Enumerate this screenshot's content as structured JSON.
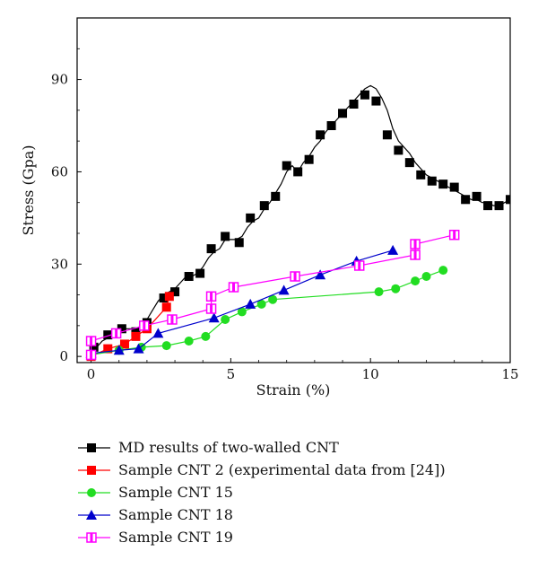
{
  "chart_data": {
    "type": "line",
    "xlabel": "Strain (%)",
    "ylabel": "Stress (Gpa)",
    "xlim": [
      -0.5,
      15
    ],
    "ylim": [
      -2,
      110
    ],
    "x_ticks": [
      0,
      5,
      10,
      15
    ],
    "y_ticks": [
      0,
      30,
      60,
      90
    ],
    "x_tick_labels": [
      "0",
      "5",
      "10",
      "15"
    ],
    "y_tick_labels": [
      "0",
      "30",
      "60",
      "90"
    ],
    "grid": false,
    "legend_position": "below",
    "series": [
      {
        "name": "MD results of two-walled CNT",
        "color": "#000000",
        "marker": "square",
        "marker_fill": "#000000",
        "line_style": "solid",
        "md_curve": [
          [
            0,
            1
          ],
          [
            0.2,
            3
          ],
          [
            0.4,
            5
          ],
          [
            0.6,
            6
          ],
          [
            0.8,
            7
          ],
          [
            1.0,
            8
          ],
          [
            1.2,
            9
          ],
          [
            1.4,
            9
          ],
          [
            1.6,
            9
          ],
          [
            1.8,
            10
          ],
          [
            2.0,
            12
          ],
          [
            2.2,
            15
          ],
          [
            2.4,
            18
          ],
          [
            2.6,
            20
          ],
          [
            2.8,
            21
          ],
          [
            3.0,
            22
          ],
          [
            3.2,
            24
          ],
          [
            3.4,
            26
          ],
          [
            3.6,
            26
          ],
          [
            3.8,
            27
          ],
          [
            4.0,
            29
          ],
          [
            4.2,
            32
          ],
          [
            4.4,
            34
          ],
          [
            4.6,
            35
          ],
          [
            4.8,
            38
          ],
          [
            5.0,
            38
          ],
          [
            5.2,
            38
          ],
          [
            5.4,
            39
          ],
          [
            5.6,
            42
          ],
          [
            5.8,
            44
          ],
          [
            6.0,
            45
          ],
          [
            6.2,
            48
          ],
          [
            6.4,
            50
          ],
          [
            6.6,
            53
          ],
          [
            6.8,
            56
          ],
          [
            7.0,
            60
          ],
          [
            7.2,
            62
          ],
          [
            7.4,
            60
          ],
          [
            7.6,
            63
          ],
          [
            7.8,
            65
          ],
          [
            8.0,
            68
          ],
          [
            8.2,
            70
          ],
          [
            8.4,
            73
          ],
          [
            8.6,
            75
          ],
          [
            8.8,
            77
          ],
          [
            9.0,
            79
          ],
          [
            9.2,
            81
          ],
          [
            9.4,
            83
          ],
          [
            9.6,
            85
          ],
          [
            9.8,
            87
          ],
          [
            10.0,
            88
          ],
          [
            10.2,
            87
          ],
          [
            10.4,
            84
          ],
          [
            10.6,
            80
          ],
          [
            10.8,
            74
          ],
          [
            11.0,
            70
          ],
          [
            11.2,
            68
          ],
          [
            11.4,
            66
          ],
          [
            11.6,
            63
          ],
          [
            11.8,
            61
          ],
          [
            12.0,
            59
          ],
          [
            12.2,
            58
          ],
          [
            12.4,
            57
          ],
          [
            12.6,
            56
          ],
          [
            12.8,
            55
          ],
          [
            13.0,
            54
          ],
          [
            13.2,
            53
          ],
          [
            13.4,
            52
          ],
          [
            13.6,
            51
          ],
          [
            13.8,
            51
          ],
          [
            14.0,
            50
          ],
          [
            14.2,
            50
          ],
          [
            14.4,
            49
          ],
          [
            14.6,
            49
          ],
          [
            14.8,
            50
          ],
          [
            15.0,
            51
          ]
        ],
        "points": [
          [
            0.1,
            3
          ],
          [
            0.6,
            7
          ],
          [
            1.1,
            9
          ],
          [
            1.6,
            8
          ],
          [
            2.0,
            11
          ],
          [
            2.6,
            19
          ],
          [
            3.0,
            21
          ],
          [
            3.5,
            26
          ],
          [
            3.9,
            27
          ],
          [
            4.3,
            35
          ],
          [
            4.8,
            39
          ],
          [
            5.3,
            37
          ],
          [
            5.7,
            45
          ],
          [
            6.2,
            49
          ],
          [
            6.6,
            52
          ],
          [
            7.0,
            62
          ],
          [
            7.4,
            60
          ],
          [
            7.8,
            64
          ],
          [
            8.2,
            72
          ],
          [
            8.6,
            75
          ],
          [
            9.0,
            79
          ],
          [
            9.4,
            82
          ],
          [
            9.8,
            85
          ],
          [
            10.2,
            83
          ],
          [
            10.6,
            72
          ],
          [
            11.0,
            67
          ],
          [
            11.4,
            63
          ],
          [
            11.8,
            59
          ],
          [
            12.2,
            57
          ],
          [
            12.6,
            56
          ],
          [
            13.0,
            55
          ],
          [
            13.4,
            51
          ],
          [
            13.8,
            52
          ],
          [
            14.2,
            49
          ],
          [
            14.6,
            49
          ],
          [
            15.0,
            51
          ]
        ]
      },
      {
        "name": "Sample CNT 2 (experimental data from [24])",
        "color": "#ff0000",
        "marker": "square",
        "marker_fill": "#ff0000",
        "line_style": "solid",
        "points": [
          [
            0,
            0
          ],
          [
            0.6,
            2.5
          ],
          [
            1.2,
            4
          ],
          [
            1.6,
            6.5
          ],
          [
            2.0,
            9
          ],
          [
            2.7,
            16
          ],
          [
            2.8,
            19.5
          ]
        ]
      },
      {
        "name": "Sample CNT 15",
        "color": "#22dd22",
        "marker": "circle",
        "marker_fill": "#22dd22",
        "line_style": "solid",
        "points": [
          [
            0,
            0.5
          ],
          [
            1.0,
            2
          ],
          [
            1.8,
            3
          ],
          [
            2.7,
            3.5
          ],
          [
            3.5,
            5
          ],
          [
            4.1,
            6.5
          ],
          [
            4.8,
            12
          ],
          [
            5.4,
            14.5
          ],
          [
            6.1,
            17
          ],
          [
            6.5,
            18.5
          ],
          [
            10.3,
            21
          ],
          [
            10.9,
            22
          ],
          [
            11.6,
            24.5
          ],
          [
            12.0,
            26
          ],
          [
            12.6,
            28
          ]
        ]
      },
      {
        "name": "Sample CNT 18",
        "color": "#0000cc",
        "marker": "triangle",
        "marker_fill": "#0000cc",
        "line_style": "solid",
        "points": [
          [
            0,
            1
          ],
          [
            1.0,
            2
          ],
          [
            1.7,
            2.5
          ],
          [
            2.4,
            7.5
          ],
          [
            4.4,
            12.5
          ],
          [
            5.7,
            17
          ],
          [
            6.9,
            21.5
          ],
          [
            8.2,
            26.5
          ],
          [
            9.5,
            31
          ],
          [
            10.8,
            34.5
          ]
        ]
      },
      {
        "name": "Sample CNT 19",
        "color": "#ff00ff",
        "marker": "half-square",
        "marker_fill": "#ff00ff",
        "line_style": "solid",
        "points": [
          [
            0,
            0.5
          ],
          [
            0,
            5
          ],
          [
            0.9,
            7.5
          ],
          [
            1.9,
            10
          ],
          [
            2.9,
            12
          ],
          [
            4.3,
            15.5
          ],
          [
            4.3,
            19.5
          ],
          [
            5.1,
            22.5
          ],
          [
            7.3,
            26
          ],
          [
            9.6,
            29.5
          ],
          [
            11.6,
            33
          ],
          [
            11.6,
            36.5
          ],
          [
            13.0,
            39.5
          ]
        ]
      }
    ]
  }
}
